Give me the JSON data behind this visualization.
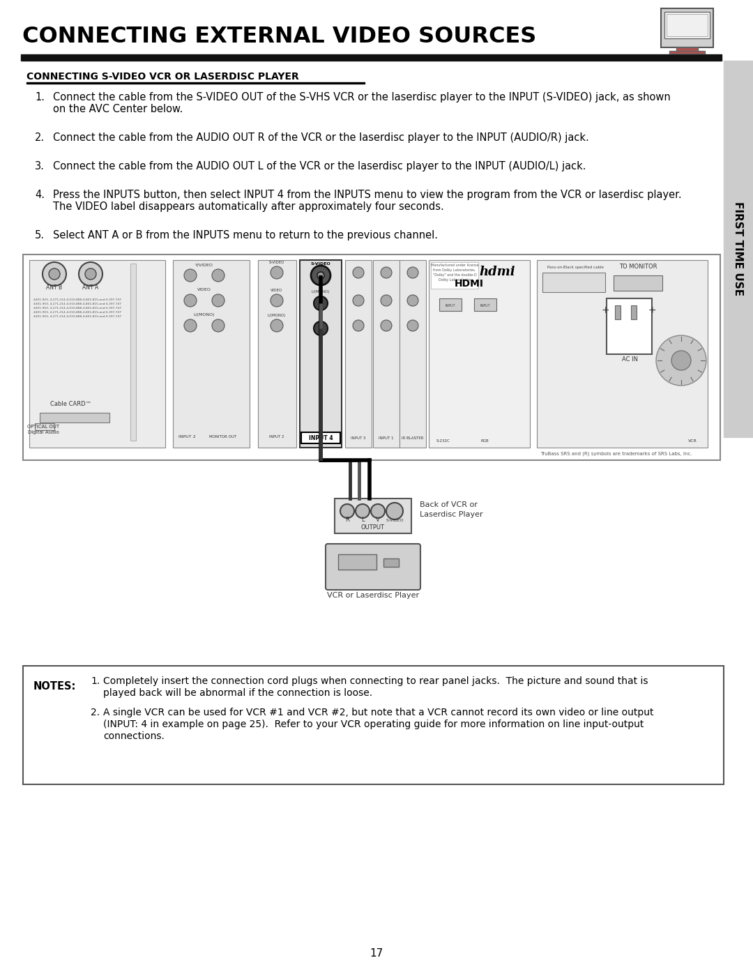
{
  "page_title": "CONNECTING EXTERNAL VIDEO SOURCES",
  "section_title": "CONNECTING S-VIDEO VCR OR LASERDISC PLAYER",
  "steps": [
    {
      "num": "1.",
      "text": "Connect the cable from the S-VIDEO OUT of the S-VHS VCR or the laserdisc player to the INPUT (S-VIDEO) jack, as shown\non the AVC Center below."
    },
    {
      "num": "2.",
      "text": "Connect the cable from the AUDIO OUT R of the VCR or the laserdisc player to the INPUT (AUDIO/R) jack."
    },
    {
      "num": "3.",
      "text": "Connect the cable from the AUDIO OUT L of the VCR or the laserdisc player to the INPUT (AUDIO/L) jack."
    },
    {
      "num": "4.",
      "text": "Press the INPUTS button, then select INPUT 4 from the INPUTS menu to view the program from the VCR or laserdisc player.\nThe VIDEO label disappears automatically after approximately four seconds."
    },
    {
      "num": "5.",
      "text": "Select ANT A or B from the INPUTS menu to return to the previous channel."
    }
  ],
  "notes_label": "NOTES:",
  "note1": "Completely insert the connection cord plugs when connecting to rear panel jacks.  The picture and sound that is\nplayed back will be abnormal if the connection is loose.",
  "note2a": "A single VCR can be used for VCR #1 and VCR #2, but note that a VCR cannot record its own video or line output",
  "note2b": "(INPUT: 4 in example on page 25).  Refer to your VCR operating guide for more information on line input-output",
  "note2c": "connections.",
  "side_label": "FIRST TIME USE",
  "page_number": "17",
  "bg_color": "#ffffff",
  "title_bar_color": "#111111",
  "sidebar_color": "#cccccc"
}
